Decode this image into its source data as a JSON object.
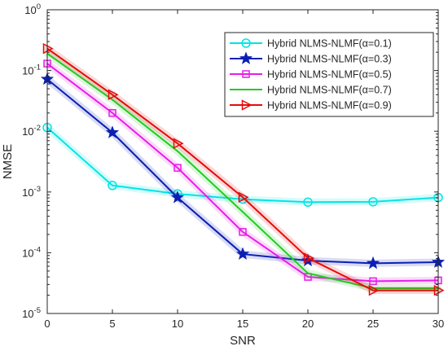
{
  "chart_data": {
    "type": "line",
    "xlabel": "SNR",
    "ylabel": "NMSE",
    "xlim": [
      0,
      30
    ],
    "ylim": [
      1e-05,
      1
    ],
    "yscale": "log",
    "x": [
      0,
      5,
      10,
      15,
      20,
      25,
      30
    ],
    "x_ticks": [
      "0",
      "5",
      "10",
      "15",
      "20",
      "25",
      "30"
    ],
    "y_ticks": [
      {
        "base": "10",
        "exp": "-5",
        "value": 1e-05
      },
      {
        "base": "10",
        "exp": "-4",
        "value": 0.0001
      },
      {
        "base": "10",
        "exp": "-3",
        "value": 0.001
      },
      {
        "base": "10",
        "exp": "-2",
        "value": 0.01
      },
      {
        "base": "10",
        "exp": "-1",
        "value": 0.1
      },
      {
        "base": "10",
        "exp": "0",
        "value": 1
      }
    ],
    "grid": false,
    "legend_position": "top-right",
    "series": [
      {
        "name": "Hybrid NLMS-NLMF(α=0.1)",
        "color": "#00e5e5",
        "marker": "circle",
        "values": [
          0.0115,
          0.00128,
          0.00093,
          0.00076,
          0.00068,
          0.00069,
          0.00081
        ]
      },
      {
        "name": "Hybrid NLMS-NLMF(α=0.3)",
        "color": "#0b1fb5",
        "marker": "star",
        "values": [
          0.072,
          0.0095,
          0.00081,
          9.5e-05,
          7.4e-05,
          6.7e-05,
          7e-05
        ]
      },
      {
        "name": "Hybrid NLMS-NLMF(α=0.5)",
        "color": "#e61ee6",
        "marker": "square",
        "values": [
          0.13,
          0.02,
          0.0025,
          0.00022,
          4e-05,
          3.4e-05,
          3.5e-05
        ]
      },
      {
        "name": "Hybrid NLMS-NLMF(α=0.7)",
        "color": "#22cc22",
        "marker": "none",
        "values": [
          0.19,
          0.033,
          0.0047,
          0.00047,
          4.6e-05,
          2.6e-05,
          2.6e-05
        ]
      },
      {
        "name": "Hybrid NLMS-NLMF(α=0.9)",
        "color": "#e60b0b",
        "marker": "triangle-right",
        "values": [
          0.23,
          0.04,
          0.0063,
          0.00082,
          8.2e-05,
          2.4e-05,
          2.4e-05
        ]
      }
    ]
  }
}
